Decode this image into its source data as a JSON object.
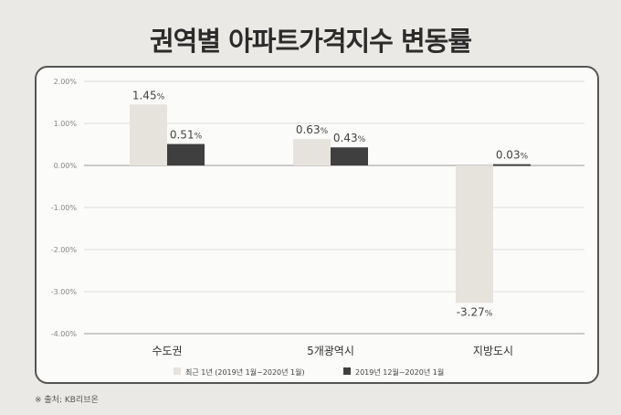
{
  "title": "권역별 아파트가격지수 변동률",
  "source": "※ 출처: KB리브온",
  "chart_data": {
    "type": "bar",
    "categories": [
      "수도권",
      "5개광역시",
      "지방도시"
    ],
    "series": [
      {
        "name": "최근 1년 (2019년 1월~2020년 1월)",
        "values": [
          1.45,
          0.63,
          -3.27
        ],
        "color": "#e6e3dc"
      },
      {
        "name": "2019년 12월~2020년 1월",
        "values": [
          0.51,
          0.43,
          0.03
        ],
        "color": "#3f3f3f"
      }
    ],
    "ylim": [
      -4,
      2
    ],
    "yticks": [
      "2.00%",
      "1.00%",
      "0.00%",
      "-1.00%",
      "-2.00%",
      "-3.00%",
      "-4.00%"
    ],
    "ytick_values": [
      2,
      1,
      0,
      -1,
      -2,
      -3,
      -4
    ],
    "grid": true,
    "legend": "bottom"
  }
}
